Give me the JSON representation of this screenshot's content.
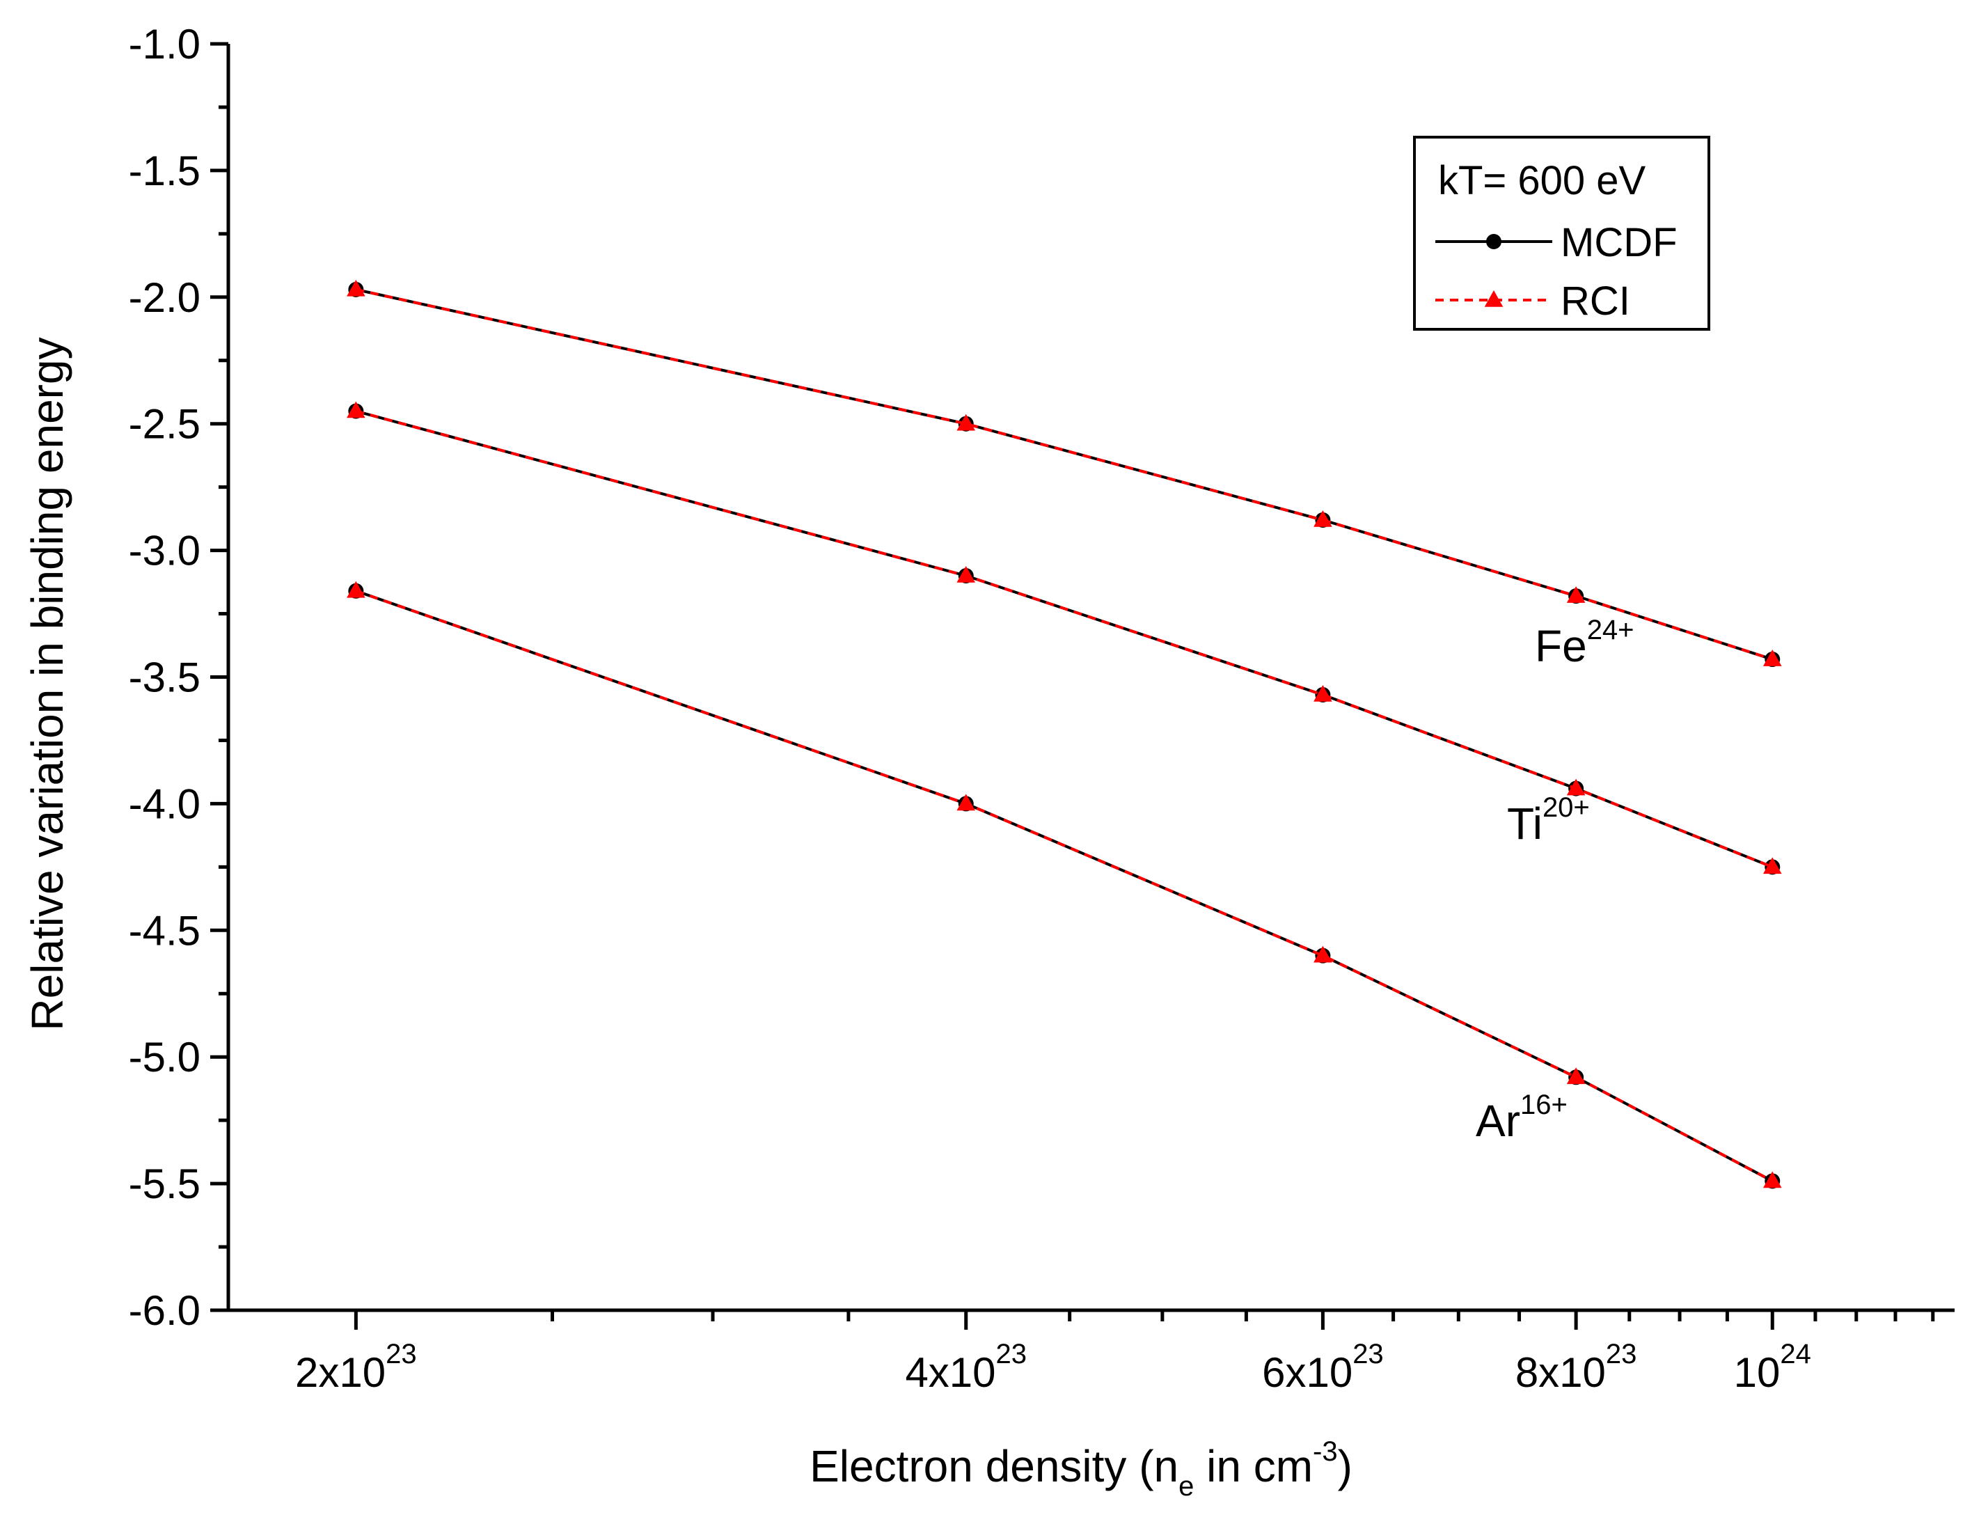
{
  "chart_data": {
    "type": "line",
    "xscale": "log",
    "xlim": [
      1.73e+23,
      1.23e+24
    ],
    "ylim": [
      -6.0,
      -1.0
    ],
    "yticks": [
      -1.0,
      -1.5,
      -2.0,
      -2.5,
      -3.0,
      -3.5,
      -4.0,
      -4.5,
      -5.0,
      -5.5,
      -6.0
    ],
    "ytick_labels": [
      "-1.0",
      "-1.5",
      "-2.0",
      "-2.5",
      "-3.0",
      "-3.5",
      "-4.0",
      "-4.5",
      "-5.0",
      "-5.5",
      "-6.0"
    ],
    "xticks": [
      {
        "value": 2e+23,
        "base": "2x10",
        "exp": "23"
      },
      {
        "value": 4e+23,
        "base": "4x10",
        "exp": "23"
      },
      {
        "value": 6e+23,
        "base": "6x10",
        "exp": "23"
      },
      {
        "value": 8e+23,
        "base": "8x10",
        "exp": "23"
      },
      {
        "value": 1e+24,
        "base": "10",
        "exp": "24"
      }
    ],
    "xlabel": {
      "prefix": "Electron density (n",
      "sub": "e",
      "middle": " in cm",
      "sup": "-3",
      "suffix": ")"
    },
    "ylabel": "Relative variation in binding energy",
    "x": [
      2e+23,
      4e+23,
      6e+23,
      8e+23,
      1e+24
    ],
    "series": [
      {
        "name": "MCDF",
        "ion": "Fe",
        "charge": "24+",
        "values": [
          -1.97,
          -2.5,
          -2.88,
          -3.18,
          -3.43
        ]
      },
      {
        "name": "RCI",
        "ion": "Fe",
        "charge": "24+",
        "values": [
          -1.97,
          -2.5,
          -2.88,
          -3.18,
          -3.43
        ]
      },
      {
        "name": "MCDF",
        "ion": "Ti",
        "charge": "20+",
        "values": [
          -2.45,
          -3.1,
          -3.57,
          -3.94,
          -4.25
        ]
      },
      {
        "name": "RCI",
        "ion": "Ti",
        "charge": "20+",
        "values": [
          -2.45,
          -3.1,
          -3.57,
          -3.94,
          -4.25
        ]
      },
      {
        "name": "MCDF",
        "ion": "Ar",
        "charge": "16+",
        "values": [
          -3.16,
          -4.0,
          -4.6,
          -5.08,
          -5.49
        ]
      },
      {
        "name": "RCI",
        "ion": "Ar",
        "charge": "16+",
        "values": [
          -3.16,
          -4.0,
          -4.6,
          -5.08,
          -5.49
        ]
      }
    ],
    "series_labels": [
      {
        "ion": "Fe",
        "charge": "24+"
      },
      {
        "ion": "Ti",
        "charge": "20+"
      },
      {
        "ion": "Ar",
        "charge": "16+"
      }
    ],
    "legend": {
      "title": "kT= 600 eV",
      "position": "top-right",
      "entries": [
        {
          "label": "MCDF",
          "style": "solid",
          "marker": "circle",
          "color": "#000000"
        },
        {
          "label": "RCI",
          "style": "dashed",
          "marker": "triangle",
          "color": "#ff0000"
        }
      ]
    },
    "colors": {
      "mcdf": "#000000",
      "rci": "#ff0000"
    }
  }
}
